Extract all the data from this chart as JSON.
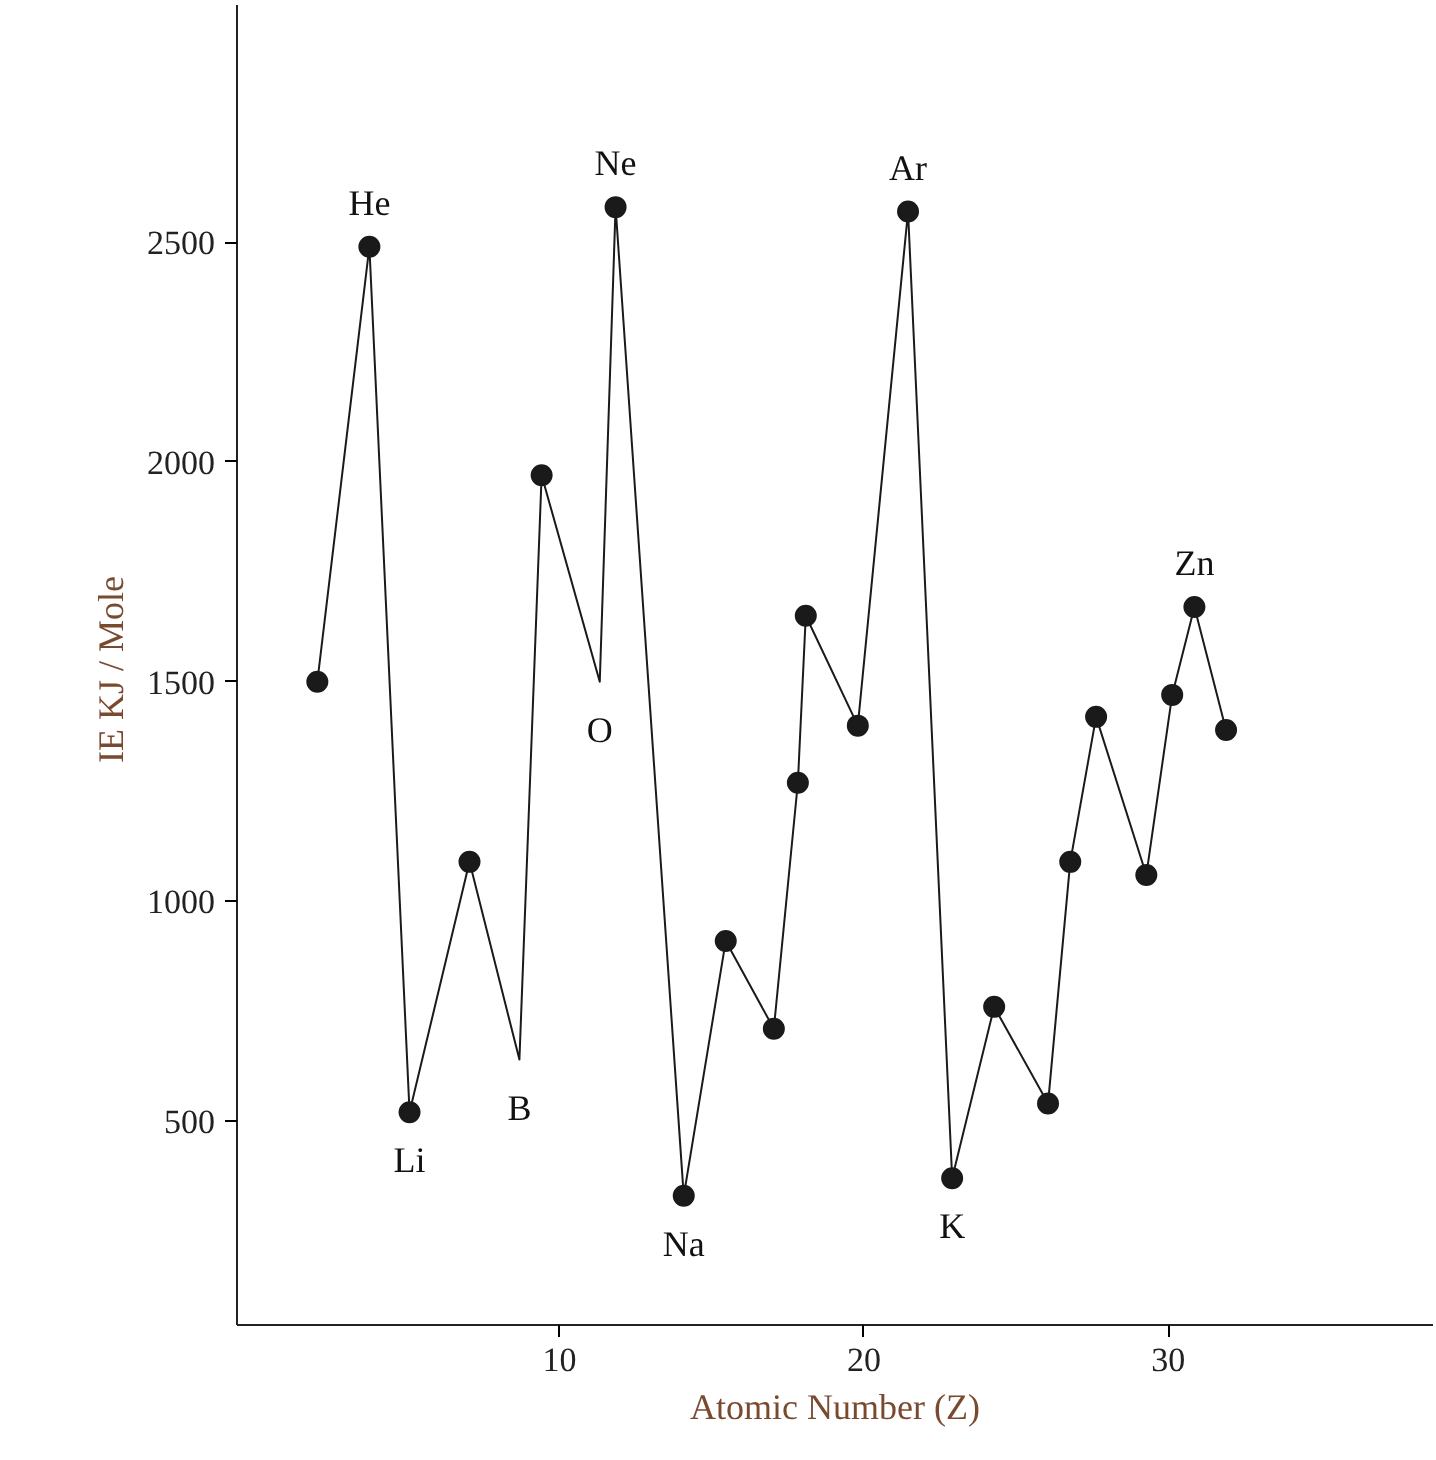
{
  "chart_data": {
    "type": "line",
    "xlabel": "Atomic Number (Z)",
    "ylabel": "IE  KJ / Mole",
    "xlim": [
      -0.6,
      38.7
    ],
    "ylim": [
      36,
      3040
    ],
    "xticks": [
      10,
      20,
      30
    ],
    "yticks": [
      500,
      1000,
      1500,
      2000,
      2500
    ],
    "grid": false,
    "series": [
      {
        "color": "#1a1a1a",
        "marker": "none",
        "x": [
          2.04,
          3.75,
          5.07,
          7.04,
          8.68,
          9.41,
          11.32,
          11.84,
          14.08,
          15.46,
          17.04,
          17.83,
          18.09,
          19.8,
          21.45,
          22.9,
          24.28,
          26.05,
          26.78,
          27.63,
          29.28,
          30.13,
          30.86,
          31.9
        ],
        "values": [
          1500,
          2490,
          520,
          1090,
          640,
          1970,
          1500,
          2580,
          330,
          910,
          710,
          1270,
          1650,
          1400,
          2570,
          370,
          760,
          540,
          1090,
          1420,
          1060,
          1470,
          1670,
          1390
        ]
      },
      {
        "type": "scatter",
        "color": "#1a1a1a",
        "marker": "circle",
        "x": [
          2.04,
          3.75,
          5.07,
          7.04,
          9.41,
          11.84,
          14.08,
          15.46,
          17.04,
          17.83,
          18.09,
          19.8,
          21.45,
          22.9,
          24.28,
          26.05,
          26.78,
          27.63,
          29.28,
          30.13,
          30.86,
          31.9
        ],
        "values": [
          1500,
          2490,
          520,
          1090,
          1970,
          2580,
          330,
          910,
          710,
          1270,
          1650,
          1400,
          2570,
          370,
          760,
          540,
          1090,
          1420,
          1060,
          1470,
          1670,
          1390
        ]
      }
    ],
    "annotations": [
      {
        "text": "He",
        "x": 3.75,
        "y": 2490
      },
      {
        "text": "Li",
        "x": 5.07,
        "y": 520
      },
      {
        "text": "B",
        "x": 8.68,
        "y": 640
      },
      {
        "text": "Ne",
        "x": 11.84,
        "y": 2580
      },
      {
        "text": "O",
        "x": 11.32,
        "y": 1500
      },
      {
        "text": "Na",
        "x": 14.08,
        "y": 330
      },
      {
        "text": "Ar",
        "x": 21.45,
        "y": 2570
      },
      {
        "text": "K",
        "x": 22.9,
        "y": 370
      },
      {
        "text": "Zn",
        "x": 30.86,
        "y": 1670
      }
    ]
  }
}
